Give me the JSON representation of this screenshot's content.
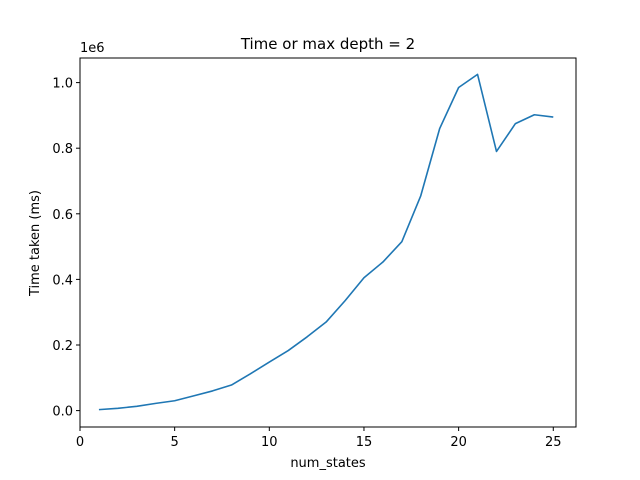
{
  "chart_data": {
    "type": "line",
    "title": "Time or max depth = 2",
    "xlabel": "num_states",
    "ylabel": "Time taken (ms)",
    "y_offset_text": "1e6",
    "xlim": [
      0,
      26.2
    ],
    "ylim": [
      -0.05,
      1.075
    ],
    "y_scale_factor": 1000000,
    "x_ticks": [
      0,
      5,
      10,
      15,
      20,
      25
    ],
    "y_ticks": [
      0.0,
      0.2,
      0.4,
      0.6,
      0.8,
      1.0
    ],
    "x_tick_labels": [
      "0",
      "5",
      "10",
      "15",
      "20",
      "25"
    ],
    "y_tick_labels": [
      "0.0",
      "0.2",
      "0.4",
      "0.6",
      "0.8",
      "1.0"
    ],
    "grid": false,
    "color": "#1f77b4",
    "series": [
      {
        "x": [
          1,
          2,
          3,
          4,
          5,
          6,
          7,
          8,
          9,
          10,
          11,
          12,
          13,
          14,
          15,
          16,
          17,
          18,
          19,
          20,
          21,
          22,
          23,
          24,
          25
        ],
        "values": [
          0.003,
          0.007,
          0.013,
          0.022,
          0.03,
          0.045,
          0.06,
          0.078,
          0.112,
          0.148,
          0.183,
          0.225,
          0.27,
          0.335,
          0.405,
          0.453,
          0.515,
          0.655,
          0.86,
          0.985,
          1.025,
          0.79,
          0.875,
          0.902,
          0.895
        ]
      }
    ]
  }
}
